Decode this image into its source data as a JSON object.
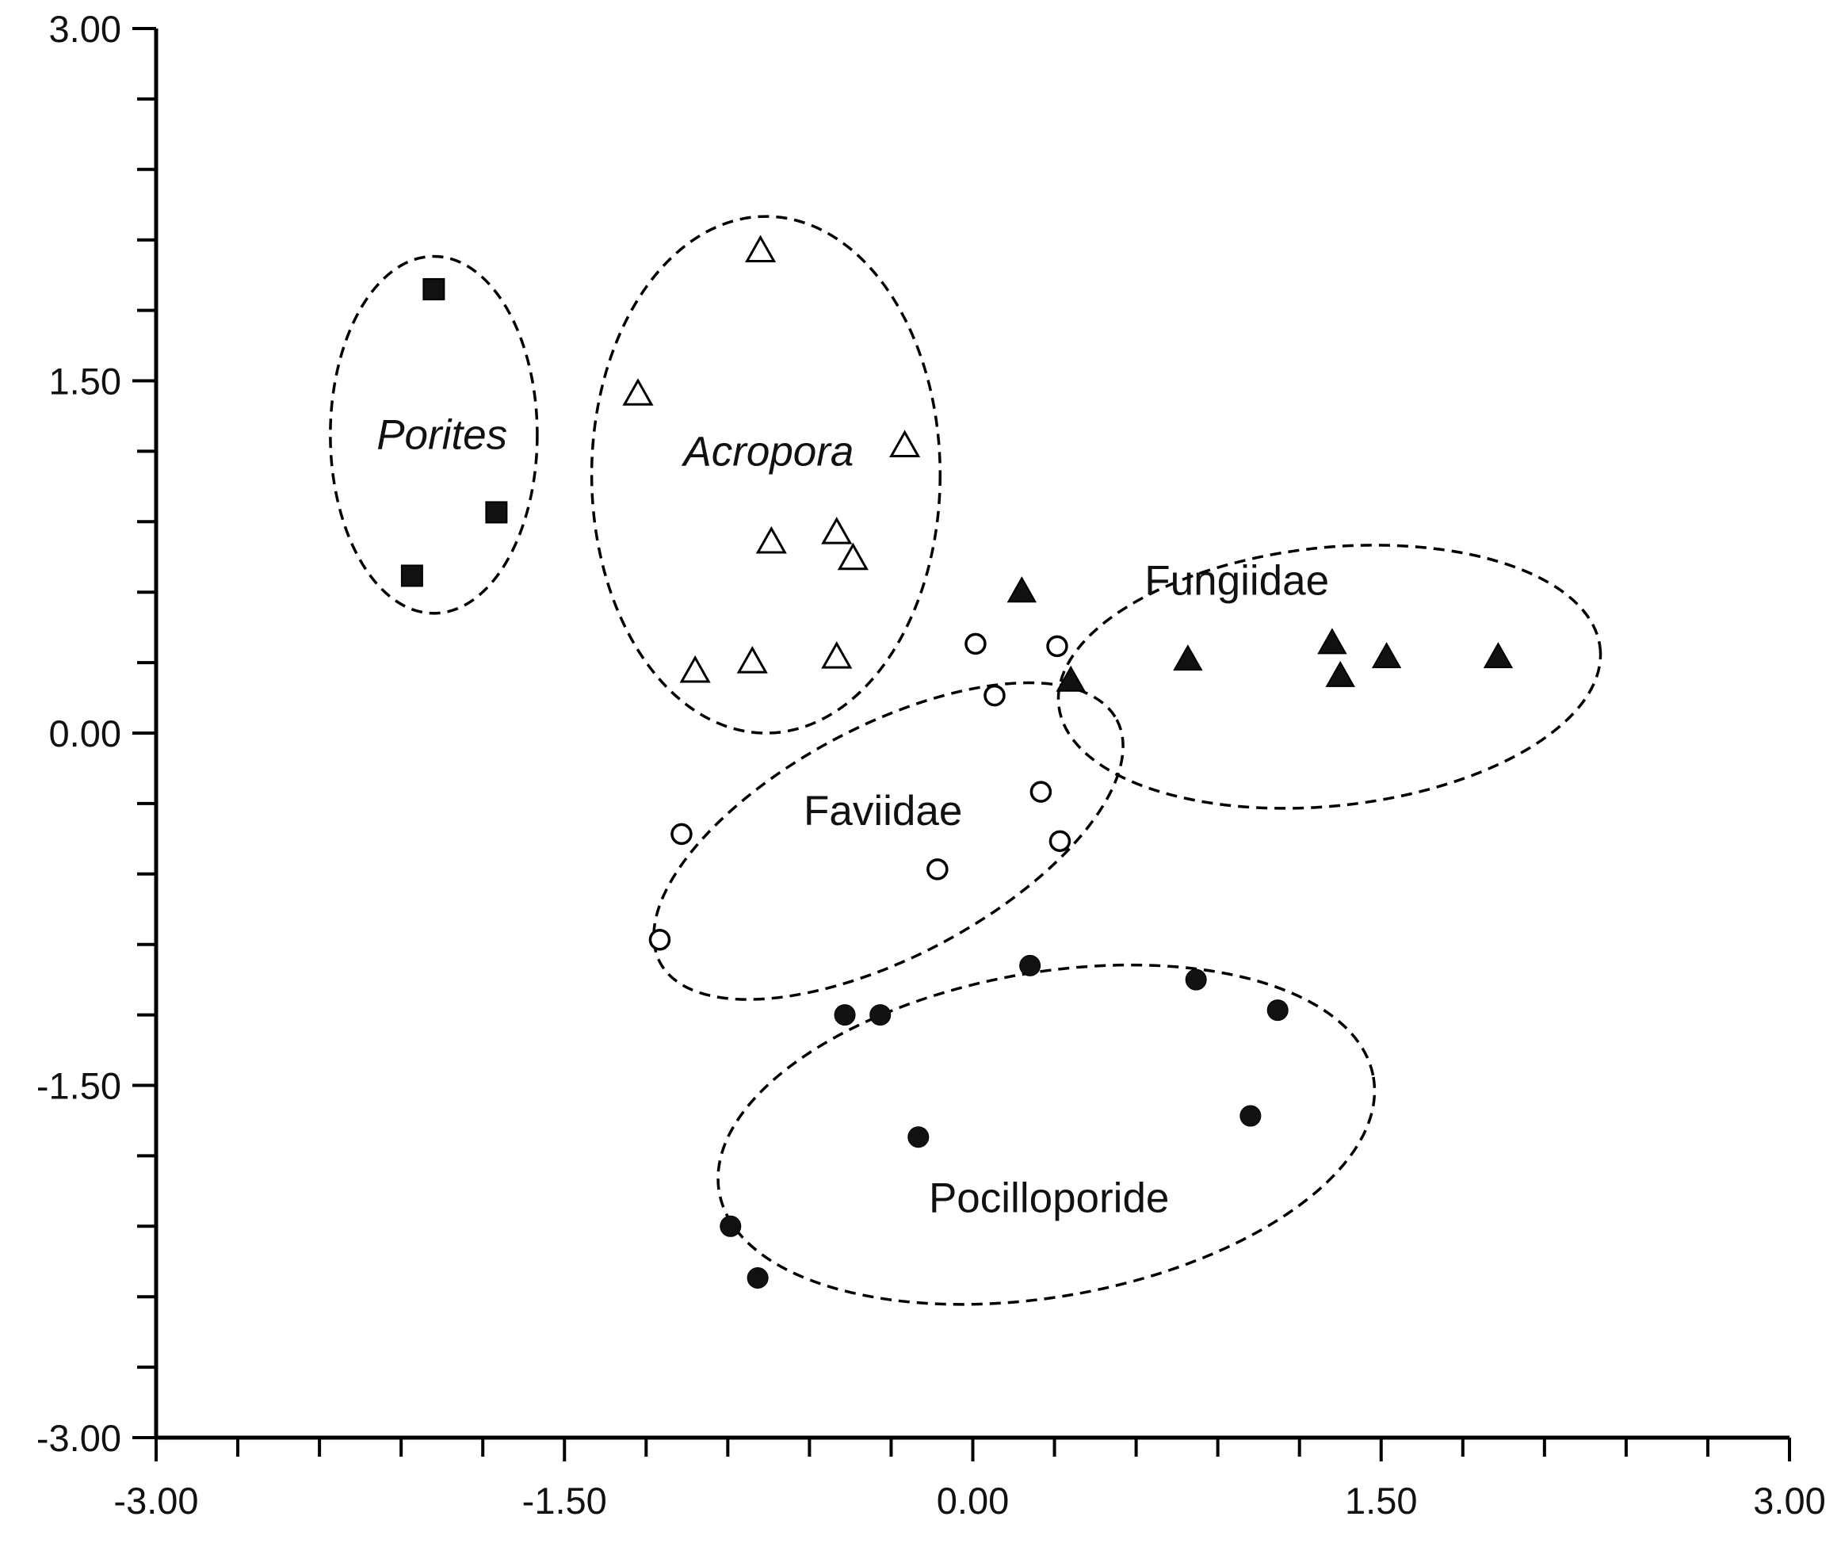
{
  "chart_data": {
    "type": "scatter",
    "title": "",
    "xlabel": "",
    "ylabel": "",
    "xlim": [
      -3,
      3
    ],
    "ylim": [
      -3,
      3
    ],
    "x_ticks": [
      "-3.00",
      "-1.50",
      "0.00",
      "1.50",
      "3.00"
    ],
    "y_ticks": [
      "3.00",
      "1.50",
      "0.00",
      "-1.50",
      "-3.00"
    ],
    "grid": false,
    "legend": "none",
    "series": [
      {
        "name": "Porites",
        "marker": "filled-square",
        "color": "#000000",
        "label_italic": true,
        "points": [
          [
            -1.98,
            1.89
          ],
          [
            -1.75,
            0.94
          ],
          [
            -2.06,
            0.67
          ]
        ],
        "ellipse": {
          "cx": -1.98,
          "cy": 1.27,
          "rx": 0.38,
          "ry": 0.76,
          "angle": 0
        }
      },
      {
        "name": "Acropora",
        "marker": "open-triangle",
        "color": "#000000",
        "label_italic": true,
        "points": [
          [
            -0.78,
            2.05
          ],
          [
            -1.23,
            1.44
          ],
          [
            -0.25,
            1.22
          ],
          [
            -0.74,
            0.81
          ],
          [
            -0.5,
            0.85
          ],
          [
            -0.44,
            0.74
          ],
          [
            -1.02,
            0.26
          ],
          [
            -0.81,
            0.3
          ],
          [
            -0.5,
            0.32
          ]
        ],
        "ellipse": {
          "cx": -0.76,
          "cy": 1.1,
          "rx": 0.64,
          "ry": 1.1,
          "angle": 0
        }
      },
      {
        "name": "Fungiidae",
        "marker": "filled-triangle",
        "color": "#000000",
        "label_italic": false,
        "points": [
          [
            0.18,
            0.6
          ],
          [
            0.36,
            0.22
          ],
          [
            0.79,
            0.31
          ],
          [
            1.32,
            0.38
          ],
          [
            1.35,
            0.24
          ],
          [
            1.52,
            0.32
          ],
          [
            1.93,
            0.32
          ]
        ],
        "ellipse": {
          "cx": 1.31,
          "cy": 0.24,
          "rx": 1.0,
          "ry": 0.55,
          "angle": -6
        }
      },
      {
        "name": "Faviidae",
        "marker": "open-circle",
        "color": "#000000",
        "label_italic": false,
        "points": [
          [
            0.01,
            0.38
          ],
          [
            0.31,
            0.37
          ],
          [
            0.08,
            0.16
          ],
          [
            0.25,
            -0.25
          ],
          [
            0.32,
            -0.46
          ],
          [
            -1.07,
            -0.43
          ],
          [
            -0.13,
            -0.58
          ],
          [
            -1.15,
            -0.88
          ]
        ],
        "ellipse": {
          "cx": -0.31,
          "cy": -0.46,
          "rx": 0.95,
          "ry": 0.49,
          "angle": -28
        }
      },
      {
        "name": "Pocilloporide",
        "marker": "filled-circle",
        "color": "#000000",
        "label_italic": false,
        "points": [
          [
            0.21,
            -0.99
          ],
          [
            0.82,
            -1.05
          ],
          [
            1.12,
            -1.18
          ],
          [
            -0.47,
            -1.2
          ],
          [
            -0.34,
            -1.2
          ],
          [
            1.02,
            -1.63
          ],
          [
            -0.2,
            -1.72
          ],
          [
            -0.89,
            -2.1
          ],
          [
            -0.79,
            -2.32
          ]
        ],
        "ellipse": {
          "cx": 0.27,
          "cy": -1.71,
          "rx": 1.22,
          "ry": 0.69,
          "angle": -10
        }
      }
    ],
    "annotations": [
      {
        "text": "Porites",
        "x": -1.95,
        "y": 1.27,
        "italic": true
      },
      {
        "text": "Acropora",
        "x": -0.75,
        "y": 1.2,
        "italic": true
      },
      {
        "text": "Fungiidae",
        "x": 0.97,
        "y": 0.65,
        "italic": false
      },
      {
        "text": "Faviidae",
        "x": -0.33,
        "y": -0.33,
        "italic": false
      },
      {
        "text": "Pocilloporide",
        "x": 0.28,
        "y": -1.98,
        "italic": false
      }
    ]
  }
}
